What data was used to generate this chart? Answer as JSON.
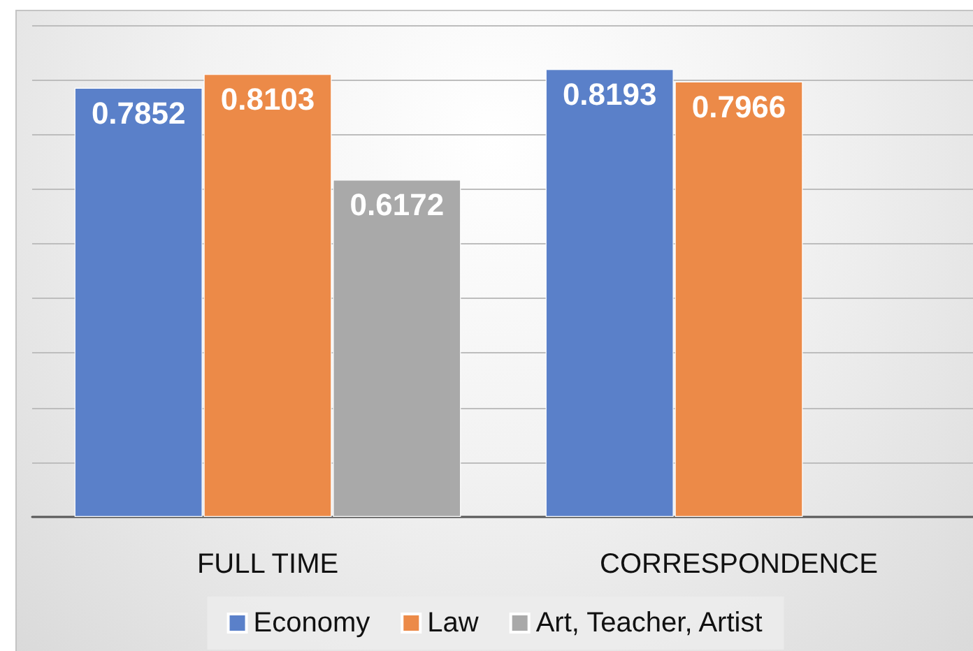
{
  "chart_data": {
    "type": "bar",
    "categories": [
      "FULL TIME",
      "CORRESPONDENCE"
    ],
    "series": [
      {
        "name": "Economy",
        "color": "#5a80c9",
        "values": [
          0.7852,
          0.8193
        ]
      },
      {
        "name": "Law",
        "color": "#ec8a48",
        "values": [
          0.8103,
          0.7966
        ]
      },
      {
        "name": "Art, Teacher, Artist",
        "color": "#a9a9a9",
        "values": [
          0.6172,
          null
        ]
      }
    ],
    "ylim": [
      0,
      0.9
    ],
    "yticks": [
      {
        "value": 0,
        "label": null
      },
      {
        "value": 0.1,
        "label": null
      },
      {
        "value": 0.2,
        "label": null
      },
      {
        "value": 0.3,
        "label": null
      },
      {
        "value": 0.4,
        "label": null
      },
      {
        "value": 0.5,
        "label": null
      },
      {
        "value": 0.6,
        "label": null
      },
      {
        "value": 0.7,
        "label": null
      },
      {
        "value": 0.8,
        "label": null
      },
      {
        "value": 0.9,
        "label": null
      }
    ],
    "grid": "y",
    "legend": "bottom",
    "data_labels": true,
    "tick_labels": "x"
  }
}
